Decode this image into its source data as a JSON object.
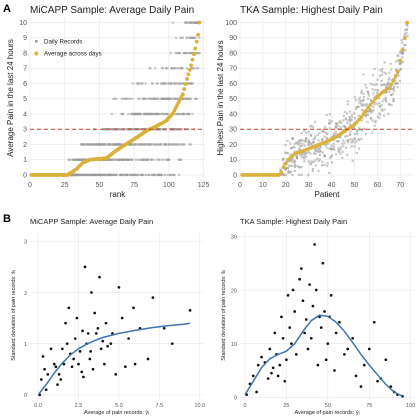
{
  "figure": {
    "panel_labels": [
      "A",
      "B"
    ]
  },
  "colors": {
    "records": "#9a9a9a",
    "average": "#d9b13b",
    "threshold": "#d33a2f",
    "points": "#111111",
    "smooth": "#3f72b0",
    "grid": "#e6e6e6",
    "axis_text": "#555555"
  },
  "chart_data": [
    {
      "type": "scatter",
      "title": "MiCAPP Sample: Average Daily Pain",
      "xlabel": "rank",
      "ylabel": "Average Pain in the last 24 hours",
      "xlim": [
        0,
        126
      ],
      "ylim": [
        -0.2,
        10.3
      ],
      "xticks": [
        0,
        25,
        50,
        75,
        100,
        125
      ],
      "yticks": [
        0,
        1,
        2,
        3,
        4,
        5,
        6,
        7,
        8,
        9,
        10
      ],
      "grid": true,
      "legend": {
        "placement": "top-left",
        "entries": [
          "Daily Records",
          "Average across days"
        ]
      },
      "reference_line": {
        "y": 3,
        "style": "dashed"
      },
      "series": [
        {
          "name": "Average across days",
          "curve": [
            [
              1,
              0
            ],
            [
              27,
              0
            ],
            [
              33,
              0.35
            ],
            [
              38,
              0.8
            ],
            [
              43,
              1.0
            ],
            [
              55,
              1.1
            ],
            [
              62,
              1.6
            ],
            [
              68,
              1.95
            ],
            [
              75,
              2.35
            ],
            [
              84,
              2.9
            ],
            [
              91,
              3.2
            ],
            [
              98,
              3.55
            ],
            [
              103,
              4.05
            ],
            [
              106,
              4.6
            ],
            [
              110,
              5.3
            ],
            [
              113,
              6.3
            ],
            [
              116,
              7.2
            ],
            [
              119,
              8.3
            ],
            [
              121,
              9.2
            ],
            [
              122,
              10
            ]
          ]
        },
        {
          "name": "Daily Records",
          "spread": [
            [
              1,
              0
            ],
            [
              25,
              0.2
            ],
            [
              35,
              1.0
            ],
            [
              50,
              1.7
            ],
            [
              62,
              2.6
            ],
            [
              75,
              3.1
            ],
            [
              90,
              3.8
            ],
            [
              105,
              4.3
            ],
            [
              115,
              4.2
            ],
            [
              122,
              3.6
            ]
          ]
        }
      ]
    },
    {
      "type": "scatter",
      "title": "TKA Sample: Highest Daily Pain",
      "xlabel": "Patient",
      "ylabel": "Highest Pain in the last 24 hours",
      "xlim": [
        0,
        76
      ],
      "ylim": [
        -2,
        103
      ],
      "xticks": [
        0,
        10,
        20,
        30,
        40,
        50,
        60,
        70
      ],
      "yticks": [
        0,
        10,
        20,
        30,
        40,
        50,
        60,
        70,
        80,
        90,
        100
      ],
      "grid": true,
      "reference_line": {
        "y": 30,
        "style": "dashed"
      },
      "series": [
        {
          "name": "Average across days",
          "curve": [
            [
              0,
              0
            ],
            [
              17.5,
              0
            ],
            [
              19,
              5
            ],
            [
              21,
              10
            ],
            [
              24,
              14
            ],
            [
              28,
              16
            ],
            [
              33,
              19
            ],
            [
              38,
              22
            ],
            [
              42,
              25
            ],
            [
              46,
              29
            ],
            [
              50,
              33
            ],
            [
              53,
              38
            ],
            [
              56,
              44
            ],
            [
              59,
              50
            ],
            [
              62,
              54
            ],
            [
              65,
              57
            ],
            [
              67,
              62
            ],
            [
              69,
              68
            ],
            [
              70,
              75
            ],
            [
              71,
              82
            ],
            [
              72,
              90
            ],
            [
              73,
              100
            ]
          ]
        },
        {
          "name": "Daily Records",
          "spread": [
            [
              0,
              0
            ],
            [
              17,
              0.5
            ],
            [
              20,
              12
            ],
            [
              30,
              14
            ],
            [
              45,
              18
            ],
            [
              55,
              17
            ],
            [
              65,
              16
            ],
            [
              73,
              8
            ]
          ]
        }
      ]
    },
    {
      "type": "scatter",
      "title": "MiCAPP Sample: Average Daily Pain",
      "xlabel": "Average of pain records:  ȳᵢ",
      "ylabel": "Standard deviation of pain records:  ŝᵢ",
      "xlim": [
        -0.5,
        10.2
      ],
      "ylim": [
        -0.1,
        3.2
      ],
      "xticks": [
        0.0,
        2.5,
        5.0,
        7.5,
        10.0
      ],
      "xtick_labels": [
        "0.0",
        "2.5",
        "5.0",
        "7.5",
        "10.0"
      ],
      "yticks": [
        0,
        1,
        2,
        3
      ],
      "grid": true,
      "points": [
        [
          0.1,
          0.0
        ],
        [
          0.2,
          0.3
        ],
        [
          0.4,
          0.5
        ],
        [
          0.6,
          0.4
        ],
        [
          0.8,
          0.9
        ],
        [
          0.3,
          0.75
        ],
        [
          1.0,
          0.6
        ],
        [
          1.1,
          0.55
        ],
        [
          1.2,
          0.2
        ],
        [
          1.3,
          0.4
        ],
        [
          1.4,
          0.3
        ],
        [
          1.5,
          0.9
        ],
        [
          1.6,
          0.6
        ],
        [
          1.7,
          1.4
        ],
        [
          1.9,
          1.7
        ],
        [
          2.0,
          0.8
        ],
        [
          2.1,
          0.55
        ],
        [
          2.2,
          0.7
        ],
        [
          2.3,
          1.1
        ],
        [
          2.4,
          1.5
        ],
        [
          2.5,
          0.6
        ],
        [
          2.6,
          0.85
        ],
        [
          2.7,
          0.45
        ],
        [
          2.8,
          0.35
        ],
        [
          2.9,
          2.5
        ],
        [
          3.0,
          1.0
        ],
        [
          3.1,
          1.2
        ],
        [
          3.2,
          0.7
        ],
        [
          3.3,
          2.0
        ],
        [
          3.4,
          0.5
        ],
        [
          3.5,
          1.6
        ],
        [
          3.6,
          1.2
        ],
        [
          3.7,
          1.3
        ],
        [
          3.8,
          2.3
        ],
        [
          3.9,
          0.9
        ],
        [
          4.0,
          1.05
        ],
        [
          4.1,
          0.6
        ],
        [
          4.3,
          0.95
        ],
        [
          4.5,
          1.0
        ],
        [
          4.6,
          1.2
        ],
        [
          4.8,
          0.4
        ],
        [
          5.0,
          2.1
        ],
        [
          5.2,
          1.5
        ],
        [
          5.4,
          0.55
        ],
        [
          5.6,
          1.1
        ],
        [
          5.9,
          1.7
        ],
        [
          6.3,
          1.3
        ],
        [
          6.8,
          0.7
        ],
        [
          7.1,
          1.9
        ],
        [
          7.8,
          1.3
        ],
        [
          8.3,
          1.0
        ],
        [
          9.4,
          1.65
        ],
        [
          0.5,
          0.1
        ],
        [
          1.8,
          1.0
        ],
        [
          2.75,
          1.25
        ],
        [
          3.25,
          0.85
        ],
        [
          4.2,
          1.4
        ],
        [
          6.0,
          0.6
        ]
      ],
      "smooth": [
        [
          0.05,
          0.02
        ],
        [
          0.5,
          0.2
        ],
        [
          1.0,
          0.43
        ],
        [
          1.5,
          0.62
        ],
        [
          2.0,
          0.78
        ],
        [
          2.5,
          0.9
        ],
        [
          3.0,
          0.99
        ],
        [
          3.5,
          1.06
        ],
        [
          4.0,
          1.12
        ],
        [
          5.0,
          1.2
        ],
        [
          6.0,
          1.26
        ],
        [
          7.0,
          1.31
        ],
        [
          8.0,
          1.35
        ],
        [
          9.0,
          1.38
        ],
        [
          9.4,
          1.4
        ]
      ]
    },
    {
      "type": "scatter",
      "title": "TKA Sample: Highest Daily Pain",
      "xlabel": "Average of pain records:  ȳᵢ",
      "ylabel": "Standard deviation of pain records:  ŝᵢ",
      "xlim": [
        -3,
        102
      ],
      "ylim": [
        -0.5,
        31
      ],
      "xticks": [
        0,
        25,
        50,
        75,
        100
      ],
      "yticks": [
        0,
        10,
        20,
        30
      ],
      "grid": true,
      "points": [
        [
          1,
          0.5
        ],
        [
          3,
          2.5
        ],
        [
          5,
          4
        ],
        [
          8,
          6
        ],
        [
          10,
          7.5
        ],
        [
          12,
          6.5
        ],
        [
          14,
          3.5
        ],
        [
          15,
          9
        ],
        [
          17,
          5.5
        ],
        [
          18,
          12
        ],
        [
          19,
          8
        ],
        [
          20,
          4
        ],
        [
          21,
          6
        ],
        [
          22,
          15
        ],
        [
          23,
          11
        ],
        [
          24,
          3
        ],
        [
          25,
          7
        ],
        [
          26,
          19
        ],
        [
          27,
          13
        ],
        [
          28,
          10
        ],
        [
          29,
          20
        ],
        [
          30,
          16
        ],
        [
          31,
          8
        ],
        [
          33,
          22
        ],
        [
          34,
          24
        ],
        [
          35,
          18
        ],
        [
          36,
          12
        ],
        [
          37,
          14.5
        ],
        [
          38,
          9
        ],
        [
          40,
          11
        ],
        [
          41,
          17
        ],
        [
          42,
          28.5
        ],
        [
          43,
          20
        ],
        [
          44,
          6
        ],
        [
          45,
          15
        ],
        [
          46,
          13
        ],
        [
          47,
          25
        ],
        [
          48,
          16
        ],
        [
          49,
          7
        ],
        [
          50,
          10
        ],
        [
          51,
          15
        ],
        [
          52,
          19
        ],
        [
          54,
          5
        ],
        [
          55,
          12
        ],
        [
          57,
          14
        ],
        [
          60,
          8
        ],
        [
          62,
          9
        ],
        [
          65,
          11
        ],
        [
          67,
          4
        ],
        [
          70,
          2
        ],
        [
          72,
          6
        ],
        [
          75,
          9
        ],
        [
          78,
          14
        ],
        [
          80,
          3
        ],
        [
          82,
          3.5
        ],
        [
          85,
          7
        ],
        [
          88,
          2
        ],
        [
          90,
          1
        ],
        [
          92,
          0.5
        ],
        [
          95,
          0.2
        ],
        [
          7,
          1
        ],
        [
          16,
          4.5
        ],
        [
          39,
          21
        ]
      ],
      "smooth": [
        [
          0,
          0.5
        ],
        [
          5,
          3
        ],
        [
          10,
          5.5
        ],
        [
          15,
          7.2
        ],
        [
          20,
          8
        ],
        [
          25,
          8.6
        ],
        [
          30,
          10
        ],
        [
          35,
          12.3
        ],
        [
          40,
          14.3
        ],
        [
          45,
          15.3
        ],
        [
          50,
          15.1
        ],
        [
          55,
          14
        ],
        [
          60,
          12.3
        ],
        [
          65,
          10.2
        ],
        [
          70,
          8
        ],
        [
          75,
          6
        ],
        [
          80,
          4.2
        ],
        [
          85,
          2.4
        ],
        [
          90,
          1
        ],
        [
          95,
          0.2
        ]
      ]
    }
  ]
}
